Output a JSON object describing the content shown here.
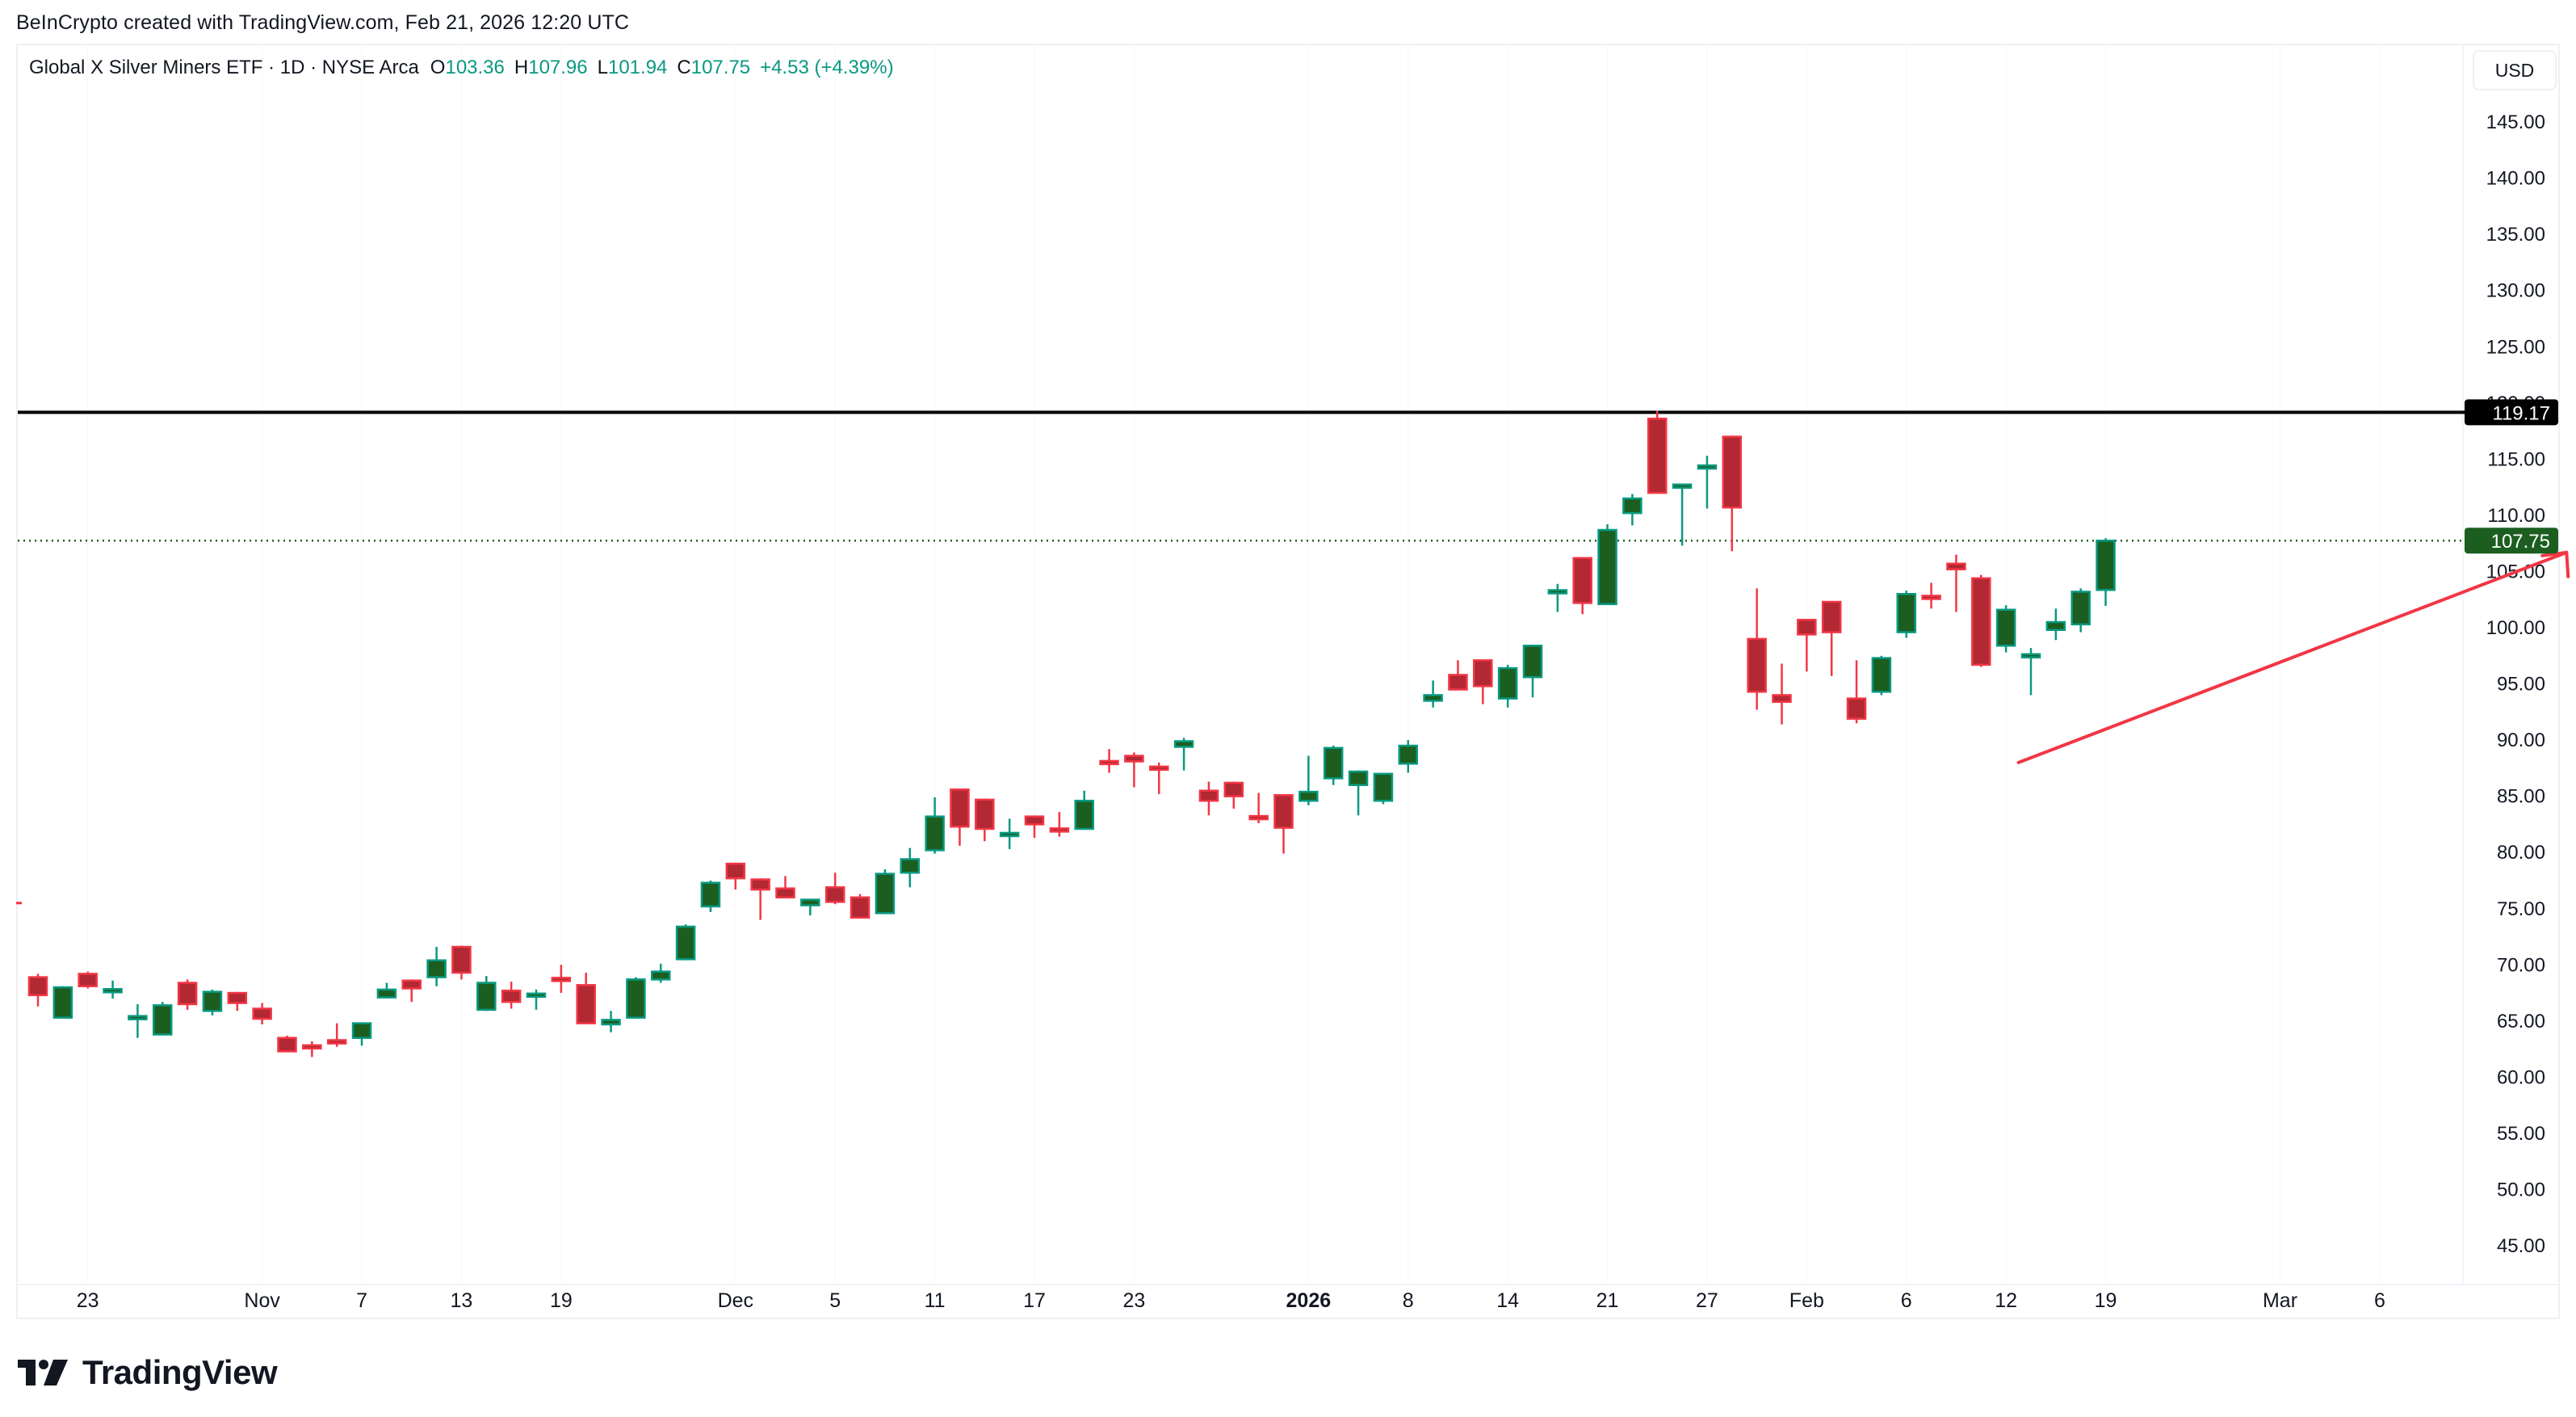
{
  "attribution": "BeInCrypto created with TradingView.com, Feb 21, 2026 12:20 UTC",
  "legend": {
    "symbol": "Global X Silver Miners ETF · 1D · NYSE Arca",
    "open_key": "O",
    "open": "103.36",
    "high_key": "H",
    "high": "107.96",
    "low_key": "L",
    "low": "101.94",
    "close_key": "C",
    "close": "107.75",
    "change": "+4.53 (+4.39%)"
  },
  "currency_button": "USD",
  "logo_text": "TradingView",
  "colors": {
    "up_border": "#089981",
    "up_body": "#1b5e20",
    "down_border": "#f23645",
    "down_body": "#b22833",
    "resistance_line": "#000000",
    "last_price_line": "#1b5e20",
    "arrow": "#f23645"
  },
  "chart_data": {
    "type": "candlestick",
    "title": "Global X Silver Miners ETF · 1D · NYSE Arca",
    "xlabel": "",
    "ylabel": "USD",
    "ylim": [
      42,
      149
    ],
    "y_ticks": [
      45,
      50,
      55,
      60,
      65,
      70,
      75,
      80,
      85,
      90,
      95,
      100,
      105,
      110,
      115,
      120,
      125,
      130,
      135,
      140,
      145
    ],
    "x_tick_labels": [
      {
        "label": "23",
        "index": 2,
        "bold": false
      },
      {
        "label": "Nov",
        "index": 9,
        "bold": false
      },
      {
        "label": "7",
        "index": 13,
        "bold": false
      },
      {
        "label": "13",
        "index": 17,
        "bold": false
      },
      {
        "label": "19",
        "index": 21,
        "bold": false
      },
      {
        "label": "Dec",
        "index": 28,
        "bold": false
      },
      {
        "label": "5",
        "index": 32,
        "bold": false
      },
      {
        "label": "11",
        "index": 36,
        "bold": false
      },
      {
        "label": "17",
        "index": 40,
        "bold": false
      },
      {
        "label": "23",
        "index": 44,
        "bold": false
      },
      {
        "label": "2026",
        "index": 51,
        "bold": true
      },
      {
        "label": "8",
        "index": 55,
        "bold": false
      },
      {
        "label": "14",
        "index": 59,
        "bold": false
      },
      {
        "label": "21",
        "index": 63,
        "bold": false
      },
      {
        "label": "27",
        "index": 67,
        "bold": false
      },
      {
        "label": "Feb",
        "index": 71,
        "bold": false
      },
      {
        "label": "6",
        "index": 75,
        "bold": false
      },
      {
        "label": "12",
        "index": 79,
        "bold": false
      },
      {
        "label": "19",
        "index": 83,
        "bold": false
      },
      {
        "label": "Mar",
        "index": 90,
        "bold": false
      },
      {
        "label": "6",
        "index": 94,
        "bold": false
      }
    ],
    "grid": false,
    "candles": [
      {
        "o": 68.9,
        "h": 69.2,
        "l": 66.3,
        "c": 67.3
      },
      {
        "o": 65.3,
        "h": 68.1,
        "l": 65.3,
        "c": 68.0
      },
      {
        "o": 69.2,
        "h": 69.4,
        "l": 67.9,
        "c": 68.1
      },
      {
        "o": 67.5,
        "h": 68.6,
        "l": 67.0,
        "c": 67.7
      },
      {
        "o": 65.2,
        "h": 66.5,
        "l": 63.5,
        "c": 65.3
      },
      {
        "o": 63.8,
        "h": 66.7,
        "l": 63.8,
        "c": 66.4
      },
      {
        "o": 68.4,
        "h": 68.7,
        "l": 66.0,
        "c": 66.5
      },
      {
        "o": 65.9,
        "h": 67.8,
        "l": 65.5,
        "c": 67.6
      },
      {
        "o": 67.5,
        "h": 67.6,
        "l": 65.9,
        "c": 66.6
      },
      {
        "o": 66.1,
        "h": 66.6,
        "l": 64.7,
        "c": 65.2
      },
      {
        "o": 63.5,
        "h": 63.7,
        "l": 62.3,
        "c": 62.3
      },
      {
        "o": 62.7,
        "h": 63.2,
        "l": 61.8,
        "c": 62.6
      },
      {
        "o": 63.3,
        "h": 64.8,
        "l": 62.7,
        "c": 63.0
      },
      {
        "o": 63.5,
        "h": 64.8,
        "l": 62.8,
        "c": 64.8
      },
      {
        "o": 67.1,
        "h": 68.4,
        "l": 67.0,
        "c": 67.8
      },
      {
        "o": 68.6,
        "h": 68.7,
        "l": 66.7,
        "c": 67.9
      },
      {
        "o": 68.9,
        "h": 71.6,
        "l": 68.1,
        "c": 70.4
      },
      {
        "o": 71.6,
        "h": 71.7,
        "l": 68.7,
        "c": 69.3
      },
      {
        "o": 66.0,
        "h": 69.0,
        "l": 65.9,
        "c": 68.4
      },
      {
        "o": 67.7,
        "h": 68.5,
        "l": 66.1,
        "c": 66.7
      },
      {
        "o": 67.2,
        "h": 67.8,
        "l": 66.0,
        "c": 67.3
      },
      {
        "o": 68.7,
        "h": 70.0,
        "l": 67.5,
        "c": 68.6
      },
      {
        "o": 68.2,
        "h": 69.3,
        "l": 64.8,
        "c": 64.8
      },
      {
        "o": 64.7,
        "h": 65.9,
        "l": 64.0,
        "c": 65.1
      },
      {
        "o": 65.3,
        "h": 68.9,
        "l": 65.3,
        "c": 68.7
      },
      {
        "o": 68.7,
        "h": 70.1,
        "l": 68.4,
        "c": 69.4
      },
      {
        "o": 70.5,
        "h": 73.6,
        "l": 70.4,
        "c": 73.4
      },
      {
        "o": 75.2,
        "h": 77.5,
        "l": 74.7,
        "c": 77.3
      },
      {
        "o": 79.0,
        "h": 79.1,
        "l": 76.7,
        "c": 77.7
      },
      {
        "o": 77.6,
        "h": 77.7,
        "l": 74.0,
        "c": 76.7
      },
      {
        "o": 76.8,
        "h": 77.9,
        "l": 76.0,
        "c": 76.0
      },
      {
        "o": 75.3,
        "h": 75.8,
        "l": 74.4,
        "c": 75.8
      },
      {
        "o": 76.9,
        "h": 78.2,
        "l": 75.4,
        "c": 75.6
      },
      {
        "o": 76.0,
        "h": 76.3,
        "l": 74.2,
        "c": 74.2
      },
      {
        "o": 74.6,
        "h": 78.5,
        "l": 74.6,
        "c": 78.1
      },
      {
        "o": 78.2,
        "h": 80.4,
        "l": 76.9,
        "c": 79.4
      },
      {
        "o": 80.2,
        "h": 84.9,
        "l": 79.9,
        "c": 83.2
      },
      {
        "o": 85.6,
        "h": 85.6,
        "l": 80.6,
        "c": 82.3
      },
      {
        "o": 84.7,
        "h": 84.8,
        "l": 81.0,
        "c": 82.1
      },
      {
        "o": 81.5,
        "h": 83.0,
        "l": 80.3,
        "c": 81.6
      },
      {
        "o": 83.2,
        "h": 83.3,
        "l": 81.3,
        "c": 82.5
      },
      {
        "o": 82.0,
        "h": 83.6,
        "l": 81.4,
        "c": 81.9
      },
      {
        "o": 82.1,
        "h": 85.5,
        "l": 82.1,
        "c": 84.6
      },
      {
        "o": 88.0,
        "h": 89.2,
        "l": 87.1,
        "c": 87.9
      },
      {
        "o": 88.6,
        "h": 88.9,
        "l": 85.8,
        "c": 88.1
      },
      {
        "o": 87.5,
        "h": 88.0,
        "l": 85.2,
        "c": 87.4
      },
      {
        "o": 89.4,
        "h": 90.2,
        "l": 87.3,
        "c": 89.9
      },
      {
        "o": 85.5,
        "h": 86.3,
        "l": 83.3,
        "c": 84.6
      },
      {
        "o": 86.2,
        "h": 86.3,
        "l": 83.9,
        "c": 85.0
      },
      {
        "o": 83.1,
        "h": 85.3,
        "l": 82.6,
        "c": 83.0
      },
      {
        "o": 85.1,
        "h": 85.2,
        "l": 79.9,
        "c": 82.2
      },
      {
        "o": 84.6,
        "h": 88.6,
        "l": 84.2,
        "c": 85.4
      },
      {
        "o": 86.6,
        "h": 89.5,
        "l": 86.0,
        "c": 89.3
      },
      {
        "o": 86.0,
        "h": 87.3,
        "l": 83.3,
        "c": 87.2
      },
      {
        "o": 84.6,
        "h": 87.0,
        "l": 84.3,
        "c": 87.0
      },
      {
        "o": 87.9,
        "h": 90.0,
        "l": 87.1,
        "c": 89.5
      },
      {
        "o": 93.5,
        "h": 95.3,
        "l": 92.9,
        "c": 94.0
      },
      {
        "o": 95.8,
        "h": 97.1,
        "l": 94.5,
        "c": 94.5
      },
      {
        "o": 97.1,
        "h": 97.1,
        "l": 93.2,
        "c": 94.8
      },
      {
        "o": 93.7,
        "h": 96.7,
        "l": 92.9,
        "c": 96.4
      },
      {
        "o": 95.6,
        "h": 98.4,
        "l": 93.8,
        "c": 98.4
      },
      {
        "o": 103.0,
        "h": 103.9,
        "l": 101.4,
        "c": 103.2
      },
      {
        "o": 106.2,
        "h": 106.2,
        "l": 101.2,
        "c": 102.2
      },
      {
        "o": 102.1,
        "h": 109.2,
        "l": 102.1,
        "c": 108.7
      },
      {
        "o": 110.2,
        "h": 111.9,
        "l": 109.1,
        "c": 111.5
      },
      {
        "o": 118.6,
        "h": 119.3,
        "l": 112.0,
        "c": 112.0
      },
      {
        "o": 112.4,
        "h": 112.8,
        "l": 107.3,
        "c": 112.6
      },
      {
        "o": 114.1,
        "h": 115.3,
        "l": 110.6,
        "c": 114.3
      },
      {
        "o": 117.0,
        "h": 117.0,
        "l": 106.8,
        "c": 110.7
      },
      {
        "o": 99.0,
        "h": 103.5,
        "l": 92.7,
        "c": 94.3
      },
      {
        "o": 94.0,
        "h": 96.8,
        "l": 91.4,
        "c": 93.4
      },
      {
        "o": 100.7,
        "h": 100.7,
        "l": 96.1,
        "c": 99.4
      },
      {
        "o": 102.3,
        "h": 102.3,
        "l": 95.7,
        "c": 99.6
      },
      {
        "o": 93.7,
        "h": 97.1,
        "l": 91.5,
        "c": 91.9
      },
      {
        "o": 94.3,
        "h": 97.5,
        "l": 94.0,
        "c": 97.3
      },
      {
        "o": 99.6,
        "h": 103.3,
        "l": 99.1,
        "c": 103.0
      },
      {
        "o": 102.7,
        "h": 104.0,
        "l": 101.7,
        "c": 102.6
      },
      {
        "o": 105.7,
        "h": 106.5,
        "l": 101.4,
        "c": 105.2
      },
      {
        "o": 104.4,
        "h": 104.7,
        "l": 96.5,
        "c": 96.7
      },
      {
        "o": 98.4,
        "h": 102.0,
        "l": 97.8,
        "c": 101.6
      },
      {
        "o": 97.4,
        "h": 98.2,
        "l": 94.0,
        "c": 97.5
      },
      {
        "o": 99.8,
        "h": 101.7,
        "l": 98.9,
        "c": 100.5
      },
      {
        "o": 100.3,
        "h": 103.5,
        "l": 99.6,
        "c": 103.2
      },
      {
        "o": 103.36,
        "h": 107.96,
        "l": 101.94,
        "c": 107.75
      }
    ],
    "annotations": [
      {
        "type": "horizontal_line",
        "price": 119.17,
        "label": "119.17",
        "color": "#000000",
        "style": "solid"
      },
      {
        "type": "price_line",
        "price": 107.75,
        "label": "107.75",
        "color": "#1b5e20",
        "style": "dotted"
      },
      {
        "type": "arrow",
        "from_index": 79.5,
        "from_price": 88.0,
        "to_index": 101.5,
        "to_price": 106.7,
        "color": "#f23645"
      }
    ]
  }
}
